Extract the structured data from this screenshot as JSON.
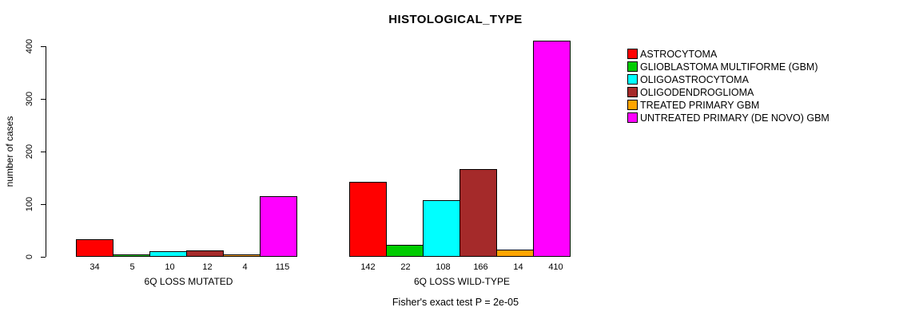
{
  "title": "HISTOLOGICAL_TYPE",
  "ylabel": "number of cases",
  "footer": "Fisher's exact test P = 2e-05",
  "chart_data": {
    "type": "bar",
    "title": "HISTOLOGICAL_TYPE",
    "xlabel": "",
    "ylabel": "number of cases",
    "ylim": [
      0,
      400
    ],
    "yticks": [
      0,
      100,
      200,
      300,
      400
    ],
    "grid": false,
    "legend_position": "right",
    "groups": [
      "6Q LOSS MUTATED",
      "6Q LOSS WILD-TYPE"
    ],
    "series": [
      {
        "name": "ASTROCYTOMA",
        "color": "#FF0000",
        "values": [
          34,
          142
        ]
      },
      {
        "name": "GLIOBLASTOMA MULTIFORME (GBM)",
        "color": "#00CC00",
        "values": [
          5,
          22
        ]
      },
      {
        "name": "OLIGOASTROCYTOMA",
        "color": "#00FFFF",
        "values": [
          10,
          108
        ]
      },
      {
        "name": "OLIGODENDROGLIOMA",
        "color": "#A52A2A",
        "values": [
          12,
          166
        ]
      },
      {
        "name": "TREATED PRIMARY GBM",
        "color": "#FFA500",
        "values": [
          4,
          14
        ]
      },
      {
        "name": "UNTREATED PRIMARY (DE NOVO) GBM",
        "color": "#FF00FF",
        "values": [
          115,
          410
        ]
      }
    ],
    "annotation": "Fisher's exact test P = 2e-05"
  }
}
